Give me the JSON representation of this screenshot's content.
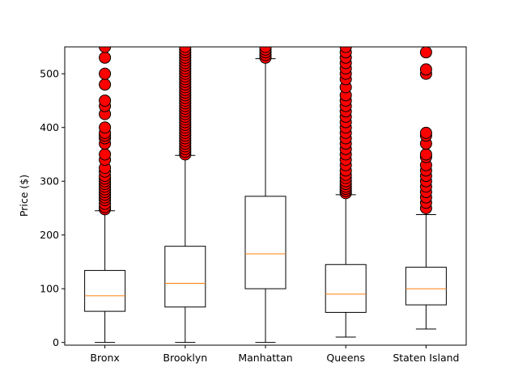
{
  "chart_data": {
    "type": "box",
    "title": "",
    "xlabel": "",
    "ylabel": "Price ($)",
    "ylim": [
      -5,
      550
    ],
    "yticks": [
      0,
      100,
      200,
      300,
      400,
      500
    ],
    "grid": false,
    "colors": {
      "box": "#000000",
      "median": "#ff7f0e",
      "outlier_fill": "#ff0000",
      "outlier_edge": "#000000"
    },
    "categories": [
      "Bronx",
      "Brooklyn",
      "Manhattan",
      "Queens",
      "Staten Island"
    ],
    "boxes": [
      {
        "name": "Bronx",
        "whisker_low": 0,
        "q1": 58,
        "median": 87,
        "q3": 134,
        "whisker_high": 245,
        "outliers": [
          248,
          252,
          258,
          265,
          270,
          275,
          280,
          285,
          290,
          295,
          300,
          305,
          310,
          318,
          325,
          340,
          350,
          370,
          380,
          385,
          390,
          400,
          425,
          440,
          450,
          480,
          500,
          530,
          550
        ]
      },
      {
        "name": "Brooklyn",
        "whisker_low": 0,
        "q1": 66,
        "median": 110,
        "q3": 179,
        "whisker_high": 348,
        "outliers": [
          350,
          355,
          360,
          365,
          370,
          375,
          380,
          385,
          390,
          395,
          400,
          405,
          410,
          415,
          420,
          425,
          430,
          435,
          440,
          445,
          450,
          455,
          460,
          465,
          470,
          475,
          480,
          485,
          490,
          495,
          500,
          505,
          510,
          515,
          520,
          525,
          530,
          535,
          540,
          545,
          550
        ]
      },
      {
        "name": "Manhattan",
        "whisker_low": 0,
        "q1": 100,
        "median": 165,
        "q3": 272,
        "whisker_high": 528,
        "outliers": [
          530,
          535,
          540,
          545,
          550
        ]
      },
      {
        "name": "Queens",
        "whisker_low": 10,
        "q1": 56,
        "median": 90,
        "q3": 145,
        "whisker_high": 275,
        "outliers": [
          278,
          282,
          286,
          290,
          295,
          300,
          306,
          312,
          320,
          330,
          340,
          350,
          360,
          370,
          380,
          390,
          400,
          410,
          420,
          430,
          440,
          450,
          460,
          475,
          490,
          500,
          510,
          520,
          530,
          540,
          550
        ]
      },
      {
        "name": "Staten Island",
        "whisker_low": 25,
        "q1": 70,
        "median": 100,
        "q3": 140,
        "whisker_high": 238,
        "outliers": [
          250,
          260,
          270,
          280,
          290,
          300,
          310,
          320,
          330,
          345,
          350,
          370,
          385,
          390,
          500,
          508,
          540
        ]
      }
    ]
  }
}
